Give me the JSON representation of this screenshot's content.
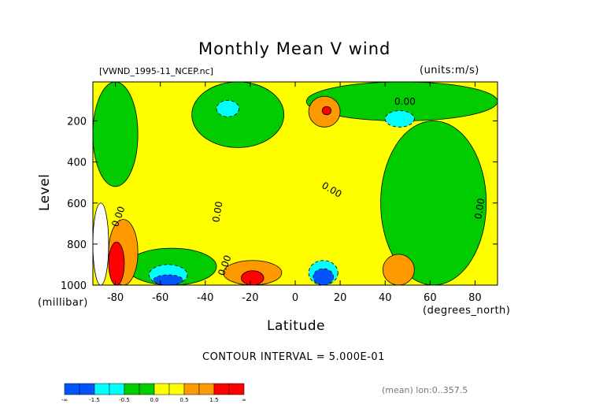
{
  "chart_data": {
    "type": "heatmap",
    "title": "Monthly Mean V wind",
    "file_label": "[VWND_1995-11_NCEP.nc]",
    "units_label": "(units:m/s)",
    "xlabel": "Latitude",
    "x_units": "(degrees_north)",
    "ylabel": "Level",
    "y_units": "(millibar)",
    "xlim": [
      -90,
      90
    ],
    "ylim": [
      1000,
      10
    ],
    "x_ticks": [
      -80,
      -60,
      -40,
      -20,
      0,
      20,
      40,
      60,
      80
    ],
    "y_ticks": [
      200,
      400,
      600,
      800,
      1000
    ],
    "contour_interval_text": "CONTOUR INTERVAL = 5.000E-01",
    "contour_labels": [
      "0.00",
      "0.00",
      "0.00",
      "0.00",
      "0.00",
      "0.00"
    ],
    "footer_note": "(mean) lon:0..357.5",
    "colorbar": {
      "labels": [
        "-∞",
        "-1.5",
        "-0.5",
        "0.0",
        "0.5",
        "1.5",
        "∞"
      ],
      "colors": [
        "#0055ff",
        "#00ffff",
        "#00cc00",
        "#ffff00",
        "#ff9900",
        "#ff0000"
      ]
    },
    "regions": [
      {
        "fill": "yellow",
        "desc": "background positive"
      },
      {
        "fill": "green",
        "lat": [
          -90,
          -70
        ],
        "level": [
          10,
          520
        ]
      },
      {
        "fill": "green",
        "lat": [
          -46,
          -5
        ],
        "level": [
          10,
          330
        ]
      },
      {
        "fill": "green",
        "lat": [
          5,
          90
        ],
        "level": [
          10,
          200
        ]
      },
      {
        "fill": "green",
        "lat": [
          38,
          85
        ],
        "level": [
          200,
          1000
        ]
      },
      {
        "fill": "green",
        "lat": [
          -75,
          -35
        ],
        "level": [
          820,
          1000
        ]
      },
      {
        "fill": "cyan",
        "lat": [
          -35,
          -25
        ],
        "level": [
          100,
          180
        ]
      },
      {
        "fill": "cyan",
        "lat": [
          40,
          53
        ],
        "level": [
          150,
          230
        ]
      },
      {
        "fill": "cyan",
        "lat": [
          -65,
          -48
        ],
        "level": [
          900,
          1000
        ]
      },
      {
        "fill": "cyan",
        "lat": [
          6,
          19
        ],
        "level": [
          880,
          1000
        ]
      },
      {
        "fill": "blue",
        "lat": [
          -63,
          -50
        ],
        "level": [
          950,
          1000
        ]
      },
      {
        "fill": "blue",
        "lat": [
          8,
          17
        ],
        "level": [
          920,
          1000
        ]
      },
      {
        "fill": "orange",
        "lat": [
          6,
          20
        ],
        "level": [
          80,
          230
        ]
      },
      {
        "fill": "red",
        "lat": [
          12,
          16
        ],
        "level": [
          130,
          170
        ]
      },
      {
        "fill": "orange",
        "lat": [
          -32,
          -6
        ],
        "level": [
          880,
          1000
        ]
      },
      {
        "fill": "red",
        "lat": [
          -24,
          -14
        ],
        "level": [
          930,
          1000
        ]
      },
      {
        "fill": "orange",
        "lat": [
          39,
          53
        ],
        "level": [
          850,
          1000
        ]
      },
      {
        "fill": "orange",
        "lat": [
          -83,
          -70
        ],
        "level": [
          680,
          1000
        ]
      },
      {
        "fill": "red",
        "lat": [
          -83,
          -76
        ],
        "level": [
          790,
          1000
        ]
      },
      {
        "fill": "white",
        "lat": [
          -90,
          -83
        ],
        "level": [
          600,
          1000
        ]
      }
    ]
  }
}
